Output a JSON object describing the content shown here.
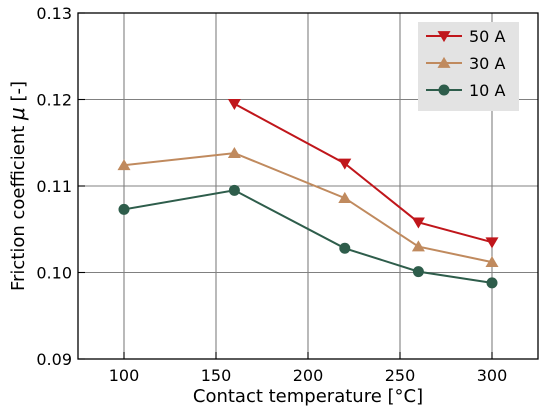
{
  "chart_data": {
    "type": "line",
    "title": "",
    "xlabel": "Contact temperature [°C]",
    "ylabel_text": "Friction coefficient ",
    "ylabel_symbol": "μ",
    "ylabel_unit": " [-]",
    "xlim": [
      75,
      325
    ],
    "ylim": [
      0.09,
      0.13
    ],
    "xticks": [
      100,
      150,
      200,
      250,
      300
    ],
    "xtick_labels": [
      "100",
      "150",
      "200",
      "250",
      "300"
    ],
    "yticks": [
      0.09,
      0.1,
      0.11,
      0.12,
      0.13
    ],
    "ytick_labels": [
      "0.09",
      "0.10",
      "0.11",
      "0.12",
      "0.13"
    ],
    "grid": true,
    "legend_position": "top-right",
    "series": [
      {
        "name": "50 A",
        "color": "#c0161b",
        "marker": "triangle-down",
        "x": [
          160,
          220,
          260,
          300
        ],
        "y": [
          0.1195,
          0.1126,
          0.1058,
          0.1035
        ]
      },
      {
        "name": "30 A",
        "color": "#c08a5e",
        "marker": "triangle-up",
        "x": [
          100,
          160,
          220,
          260,
          300
        ],
        "y": [
          0.1124,
          0.1138,
          0.1086,
          0.103,
          0.1012
        ]
      },
      {
        "name": "10 A",
        "color": "#2e5d4b",
        "marker": "circle",
        "x": [
          100,
          160,
          220,
          260,
          300
        ],
        "y": [
          0.1073,
          0.1095,
          0.1028,
          0.1001,
          0.0988
        ]
      }
    ]
  }
}
